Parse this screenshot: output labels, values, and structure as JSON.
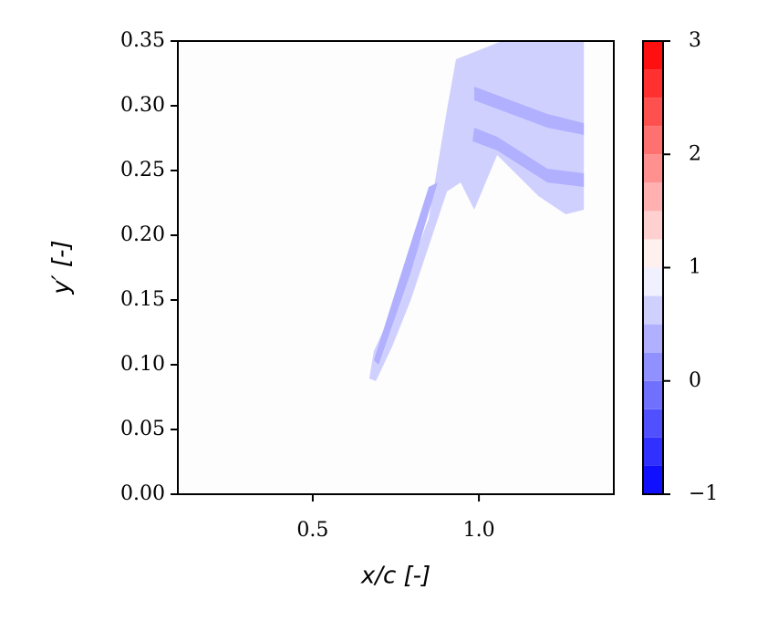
{
  "chart_data": {
    "type": "contourf",
    "xlabel": "x/c [-]",
    "ylabel": "y′ [-]",
    "xlim": [
      0.094,
      1.406
    ],
    "xticks": [
      0.5,
      {
        "value": 1,
        "label": "1.0"
      }
    ],
    "ylim": [
      0,
      0.35
    ],
    "yticks": [
      {
        "value": 0,
        "label": "0.00"
      },
      {
        "value": 0.05,
        "label": "0.05"
      },
      {
        "value": 0.1,
        "label": "0.10"
      },
      {
        "value": 0.15,
        "label": "0.15"
      },
      {
        "value": 0.2,
        "label": "0.20"
      },
      {
        "value": 0.25,
        "label": "0.25"
      },
      {
        "value": 0.3,
        "label": "0.30"
      },
      {
        "value": 0.35,
        "label": "0.35"
      }
    ],
    "levels": [
      -1,
      -0.75,
      -0.5,
      -0.25,
      0,
      0.25,
      0.5,
      0.75,
      1,
      1.25,
      1.5,
      1.75,
      2,
      2.25,
      2.5,
      2.75,
      3
    ],
    "colors": [
      "#1010ff",
      "#3030ff",
      "#5050ff",
      "#7070ff",
      "#9090ff",
      "#b0b0ff",
      "#d0d0ff",
      "#f0f0ff",
      "#fff0f0",
      "#ffd0d0",
      "#ffb0b0",
      "#ff9090",
      "#ff7070",
      "#ff5050",
      "#ff3030",
      "#ff1010"
    ],
    "clim": [
      -1,
      3
    ],
    "cticks": [
      {
        "value": -1,
        "label": "−1"
      },
      0,
      1,
      2,
      3
    ],
    "regions": [
      {
        "level": 0.6,
        "x": [
          0.67,
          0.684,
          0.766,
          0.849,
          0.904,
          0.931,
          1.069,
          1.316,
          1.316,
          1.261,
          1.179,
          1.055,
          0.986,
          0.945,
          0.904,
          0.849,
          0.794,
          0.739,
          0.69
        ],
        "y": [
          0.0894,
          0.1106,
          0.1563,
          0.2127,
          0.2972,
          0.3359,
          0.35,
          0.35,
          0.2197,
          0.2162,
          0.2303,
          0.262,
          0.2197,
          0.2408,
          0.2338,
          0.1915,
          0.1493,
          0.1141,
          0.0873
        ]
      },
      {
        "level": 0.4,
        "x": [
          0.698,
          0.794,
          0.876,
          0.849,
          0.766,
          0.684
        ],
        "y": [
          0.1,
          0.1704,
          0.2408,
          0.2373,
          0.1704,
          0.1035
        ]
      },
      {
        "level": 0.4,
        "x": [
          0.986,
          1.055,
          1.206,
          1.316,
          1.316,
          1.206,
          1.055,
          0.981
        ],
        "y": [
          0.2831,
          0.2761,
          0.2514,
          0.2479,
          0.2373,
          0.2408,
          0.2655,
          0.2725
        ]
      },
      {
        "level": 0.4,
        "x": [
          0.986,
          1.096,
          1.206,
          1.316,
          1.316,
          1.206,
          1.096,
          0.986
        ],
        "y": [
          0.3148,
          0.3042,
          0.2937,
          0.2866,
          0.2775,
          0.2831,
          0.2937,
          0.3042
        ]
      }
    ]
  }
}
